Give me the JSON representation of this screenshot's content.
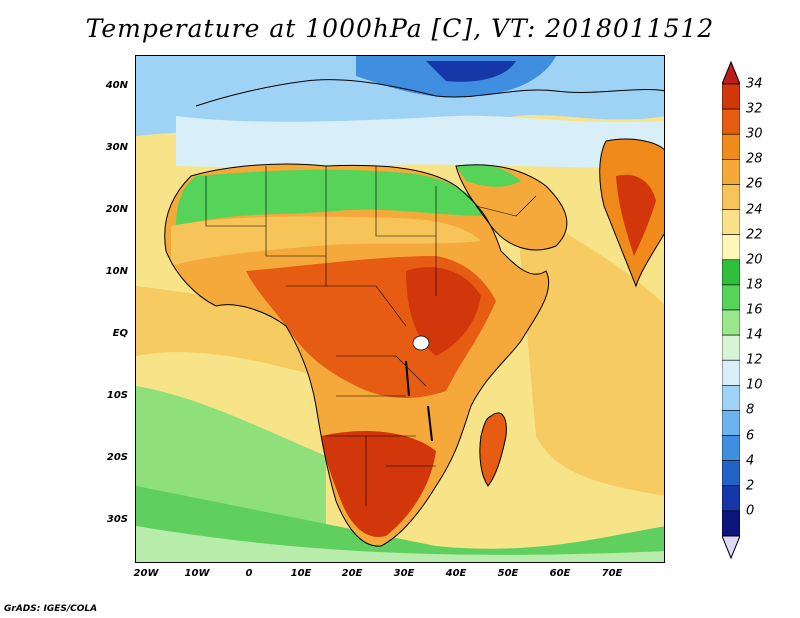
{
  "title": "Temperature at 1000hPa [C], VT: 2018011512",
  "credit": "GrADS: IGES/COLA",
  "lat_ticks": [
    "40N",
    "30N",
    "20N",
    "10N",
    "EQ",
    "10S",
    "20S",
    "30S"
  ],
  "lon_ticks": [
    "20W",
    "10W",
    "0",
    "10E",
    "20E",
    "30E",
    "40E",
    "50E",
    "60E",
    "70E"
  ],
  "colorbar": {
    "labels": [
      "34",
      "32",
      "30",
      "28",
      "26",
      "24",
      "22",
      "20",
      "18",
      "16",
      "14",
      "12",
      "10",
      "8",
      "6",
      "4",
      "2",
      "0"
    ],
    "colors": [
      "#d2360b",
      "#e65c12",
      "#f08a1b",
      "#f4a93a",
      "#f7c45a",
      "#f9e28a",
      "#fdf8b8",
      "#2fbf3c",
      "#56d45a",
      "#9ae88c",
      "#d6f5d6",
      "#d8effa",
      "#9fd3f5",
      "#6db4ee",
      "#3f8ee0",
      "#2462c8",
      "#1637a8",
      "#0a167a"
    ],
    "over_color": "#c01a1a",
    "under_color": "#e0d8f8"
  },
  "map": {
    "ocean_color": "#f8e488",
    "extent": {
      "lon_min": -23,
      "lon_max": 80,
      "lat_min": -37,
      "lat_max": 45
    }
  }
}
